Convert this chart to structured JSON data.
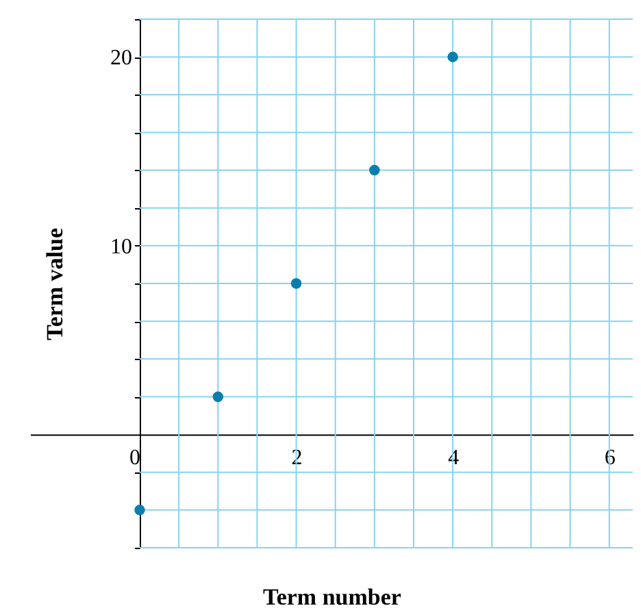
{
  "chart_data": {
    "type": "scatter",
    "xlabel": "Term number",
    "ylabel": "Term value",
    "x": [
      0,
      1,
      2,
      3,
      4
    ],
    "values": [
      -4,
      2,
      8,
      14,
      20
    ],
    "color": "#0a7fae",
    "marker": "circle",
    "grid": true,
    "xlim": [
      -1.4,
      6.3
    ],
    "ylim": [
      -6,
      22
    ],
    "xticks": [
      0,
      {
        "value": 0.5,
        "label": null
      },
      {
        "value": 1,
        "label": null
      },
      {
        "value": 1.5,
        "label": null
      },
      2,
      {
        "value": 2.5,
        "label": null
      },
      {
        "value": 3,
        "label": null
      },
      {
        "value": 3.5,
        "label": null
      },
      4,
      {
        "value": 4.5,
        "label": null
      },
      {
        "value": 5,
        "label": null
      },
      {
        "value": 5.5,
        "label": null
      },
      6
    ],
    "yticks": [
      {
        "value": -6,
        "label": null
      },
      {
        "value": -4,
        "label": null
      },
      {
        "value": -2,
        "label": null
      },
      {
        "value": 2,
        "label": null
      },
      {
        "value": 4,
        "label": null
      },
      {
        "value": 6,
        "label": null
      },
      {
        "value": 8,
        "label": null
      },
      10,
      {
        "value": 12,
        "label": null
      },
      {
        "value": 14,
        "label": null
      },
      {
        "value": 16,
        "label": null
      },
      {
        "value": 18,
        "label": null
      },
      20,
      {
        "value": 22,
        "label": null
      }
    ]
  }
}
